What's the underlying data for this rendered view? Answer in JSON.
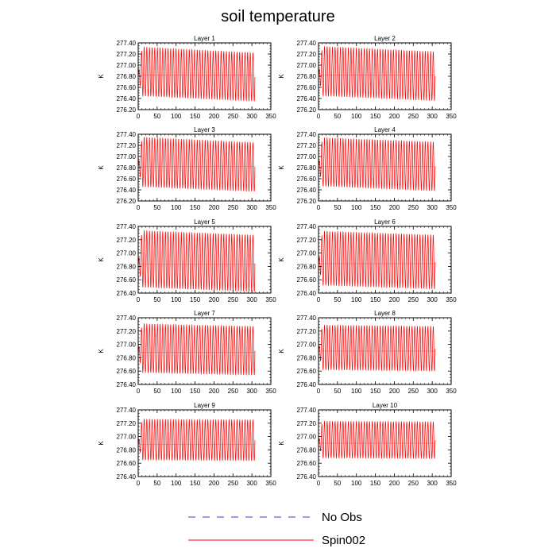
{
  "figure_title": "soil temperature",
  "legend": [
    {
      "label": "No Obs",
      "color": "#3b3bc8",
      "style": "dashed"
    },
    {
      "label": "Spin002",
      "color": "#ff0000",
      "style": "solid"
    }
  ],
  "chart_data": [
    {
      "type": "line",
      "title": "Layer 1",
      "ylabel": "K",
      "xlim": [
        0,
        350
      ],
      "ylim": [
        276.2,
        277.4
      ],
      "xticks": [
        "0",
        "50",
        "100",
        "150",
        "200",
        "250",
        "300",
        "350"
      ],
      "yticks": [
        "277.40",
        "277.20",
        "277.00",
        "276.80",
        "276.60",
        "276.40",
        "276.20"
      ],
      "series": [
        {
          "name": "Spin002",
          "color": "#ff0000",
          "x_range": [
            0,
            308
          ],
          "cycles": 44,
          "upper_start": 277.33,
          "upper_end": 277.22,
          "lower_start": 276.45,
          "lower_end": 276.35,
          "mean": 276.82
        }
      ]
    },
    {
      "type": "line",
      "title": "Layer 2",
      "ylabel": "K",
      "xlim": [
        0,
        350
      ],
      "ylim": [
        276.2,
        277.4
      ],
      "xticks": [
        "0",
        "50",
        "100",
        "150",
        "200",
        "250",
        "300",
        "350"
      ],
      "yticks": [
        "277.40",
        "277.20",
        "277.00",
        "276.80",
        "276.60",
        "276.40",
        "276.20"
      ],
      "series": [
        {
          "name": "Spin002",
          "color": "#ff0000",
          "x_range": [
            0,
            308
          ],
          "cycles": 44,
          "upper_start": 277.34,
          "upper_end": 277.24,
          "lower_start": 276.45,
          "lower_end": 276.36,
          "mean": 276.82
        }
      ]
    },
    {
      "type": "line",
      "title": "Layer 3",
      "ylabel": "K",
      "xlim": [
        0,
        350
      ],
      "ylim": [
        276.2,
        277.4
      ],
      "xticks": [
        "0",
        "50",
        "100",
        "150",
        "200",
        "250",
        "300",
        "350"
      ],
      "yticks": [
        "277.40",
        "277.20",
        "277.00",
        "276.80",
        "276.60",
        "276.40",
        "276.20"
      ],
      "series": [
        {
          "name": "Spin002",
          "color": "#ff0000",
          "x_range": [
            0,
            308
          ],
          "cycles": 44,
          "upper_start": 277.35,
          "upper_end": 277.25,
          "lower_start": 276.46,
          "lower_end": 276.37,
          "mean": 276.82
        }
      ]
    },
    {
      "type": "line",
      "title": "Layer 4",
      "ylabel": "K",
      "xlim": [
        0,
        350
      ],
      "ylim": [
        276.2,
        277.4
      ],
      "xticks": [
        "0",
        "50",
        "100",
        "150",
        "200",
        "250",
        "300",
        "350"
      ],
      "yticks": [
        "277.40",
        "277.20",
        "277.00",
        "276.80",
        "276.60",
        "276.40",
        "276.20"
      ],
      "series": [
        {
          "name": "Spin002",
          "color": "#ff0000",
          "x_range": [
            0,
            308
          ],
          "cycles": 44,
          "upper_start": 277.34,
          "upper_end": 277.26,
          "lower_start": 276.47,
          "lower_end": 276.38,
          "mean": 276.82
        }
      ]
    },
    {
      "type": "line",
      "title": "Layer 5",
      "ylabel": "K",
      "xlim": [
        0,
        350
      ],
      "ylim": [
        276.4,
        277.4
      ],
      "xticks": [
        "0",
        "50",
        "100",
        "150",
        "200",
        "250",
        "300",
        "350"
      ],
      "yticks": [
        "277.40",
        "277.20",
        "277.00",
        "276.80",
        "276.60",
        "276.40"
      ],
      "series": [
        {
          "name": "Spin002",
          "color": "#ff0000",
          "x_range": [
            0,
            308
          ],
          "cycles": 44,
          "upper_start": 277.34,
          "upper_end": 277.27,
          "lower_start": 276.49,
          "lower_end": 276.42,
          "mean": 276.83
        }
      ]
    },
    {
      "type": "line",
      "title": "Layer 6",
      "ylabel": "K",
      "xlim": [
        0,
        350
      ],
      "ylim": [
        276.4,
        277.4
      ],
      "xticks": [
        "0",
        "50",
        "100",
        "150",
        "200",
        "250",
        "300",
        "350"
      ],
      "yticks": [
        "277.40",
        "277.20",
        "277.00",
        "276.80",
        "276.60",
        "276.40"
      ],
      "series": [
        {
          "name": "Spin002",
          "color": "#ff0000",
          "x_range": [
            0,
            308
          ],
          "cycles": 44,
          "upper_start": 277.33,
          "upper_end": 277.27,
          "lower_start": 276.52,
          "lower_end": 276.46,
          "mean": 276.84
        }
      ]
    },
    {
      "type": "line",
      "title": "Layer 7",
      "ylabel": "K",
      "xlim": [
        0,
        350
      ],
      "ylim": [
        276.4,
        277.4
      ],
      "xticks": [
        "0",
        "50",
        "100",
        "150",
        "200",
        "250",
        "300",
        "350"
      ],
      "yticks": [
        "277.40",
        "277.20",
        "277.00",
        "276.80",
        "276.60",
        "276.40"
      ],
      "series": [
        {
          "name": "Spin002",
          "color": "#ff0000",
          "x_range": [
            0,
            308
          ],
          "cycles": 44,
          "upper_start": 277.31,
          "upper_end": 277.27,
          "lower_start": 276.58,
          "lower_end": 276.54,
          "mean": 276.88
        }
      ]
    },
    {
      "type": "line",
      "title": "Layer 8",
      "ylabel": "K",
      "xlim": [
        0,
        350
      ],
      "ylim": [
        276.4,
        277.4
      ],
      "xticks": [
        "0",
        "50",
        "100",
        "150",
        "200",
        "250",
        "300",
        "350"
      ],
      "yticks": [
        "277.40",
        "277.20",
        "277.00",
        "276.80",
        "276.60",
        "276.40"
      ],
      "series": [
        {
          "name": "Spin002",
          "color": "#ff0000",
          "x_range": [
            0,
            308
          ],
          "cycles": 44,
          "upper_start": 277.29,
          "upper_end": 277.27,
          "lower_start": 276.62,
          "lower_end": 276.6,
          "mean": 276.9
        }
      ]
    },
    {
      "type": "line",
      "title": "Layer 9",
      "ylabel": "K",
      "xlim": [
        0,
        350
      ],
      "ylim": [
        276.4,
        277.4
      ],
      "xticks": [
        "0",
        "50",
        "100",
        "150",
        "200",
        "250",
        "300",
        "350"
      ],
      "yticks": [
        "277.40",
        "277.20",
        "277.00",
        "276.80",
        "276.60",
        "276.40"
      ],
      "series": [
        {
          "name": "Spin002",
          "color": "#ff0000",
          "x_range": [
            0,
            308
          ],
          "cycles": 44,
          "upper_start": 277.26,
          "upper_end": 277.25,
          "lower_start": 276.65,
          "lower_end": 276.64,
          "mean": 276.88
        }
      ]
    },
    {
      "type": "line",
      "title": "Layer 10",
      "ylabel": "K",
      "xlim": [
        0,
        350
      ],
      "ylim": [
        276.4,
        277.4
      ],
      "xticks": [
        "0",
        "50",
        "100",
        "150",
        "200",
        "250",
        "300",
        "350"
      ],
      "yticks": [
        "277.40",
        "277.20",
        "277.00",
        "276.80",
        "276.60",
        "276.40"
      ],
      "series": [
        {
          "name": "Spin002",
          "color": "#ff0000",
          "x_range": [
            0,
            308
          ],
          "cycles": 44,
          "upper_start": 277.23,
          "upper_end": 277.22,
          "lower_start": 276.68,
          "lower_end": 276.67,
          "mean": 276.9
        }
      ]
    }
  ]
}
